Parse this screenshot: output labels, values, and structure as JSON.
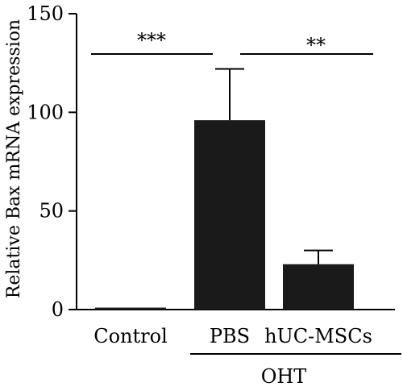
{
  "chart_data": {
    "type": "bar",
    "ylabel": "Relative Bax mRNA expression",
    "categories": [
      "Control",
      "PBS",
      "hUC-MSCs"
    ],
    "values": [
      1,
      96,
      23
    ],
    "error_plus": [
      0,
      26,
      7
    ],
    "ylim": [
      0,
      150
    ],
    "yticks": [
      0,
      50,
      100,
      150
    ],
    "group_label": "OHT",
    "group_members": [
      "PBS",
      "hUC-MSCs"
    ],
    "significance": [
      {
        "between": [
          "Control",
          "PBS"
        ],
        "label": "***"
      },
      {
        "between": [
          "PBS",
          "hUC-MSCs"
        ],
        "label": "**"
      }
    ],
    "bar_color": "#1a1a1a",
    "grid": false,
    "legend": "none"
  }
}
